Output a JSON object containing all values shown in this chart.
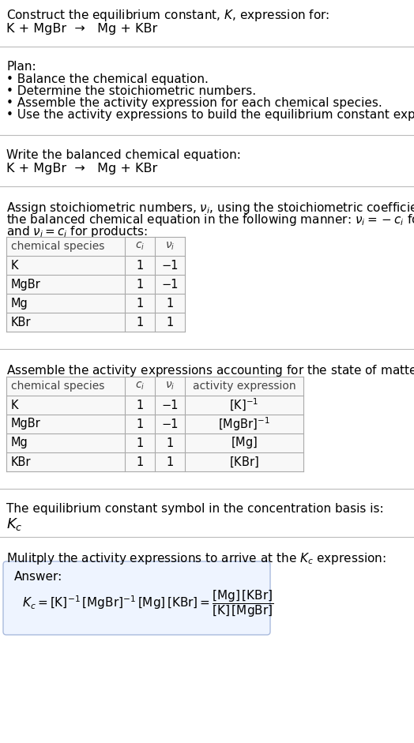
{
  "bg_color": "#ffffff",
  "text_color": "#000000",
  "line_color": "#bbbbbb",
  "table_border_color": "#aaaaaa",
  "table_bg": "#f8f8f8",
  "answer_bg": "#eef4ff",
  "answer_border": "#aabbdd",
  "title_text": "Construct the equilibrium constant, $K$, expression for:",
  "reaction_line": "K + MgBr  →   Mg + KBr",
  "plan_header": "Plan:",
  "plan_bullets": [
    "• Balance the chemical equation.",
    "• Determine the stoichiometric numbers.",
    "• Assemble the activity expression for each chemical species.",
    "• Use the activity expressions to build the equilibrium constant expression."
  ],
  "balanced_header": "Write the balanced chemical equation:",
  "stoich_line1": "Assign stoichiometric numbers, $\\nu_i$, using the stoichiometric coefficients, $c_i$, from",
  "stoich_line2": "the balanced chemical equation in the following manner: $\\nu_i = -c_i$ for reactants",
  "stoich_line3": "and $\\nu_i = c_i$ for products:",
  "table1_headers": [
    "chemical species",
    "$c_i$",
    "$\\nu_i$"
  ],
  "table1_rows": [
    [
      "K",
      "1",
      "−1"
    ],
    [
      "MgBr",
      "1",
      "−1"
    ],
    [
      "Mg",
      "1",
      "1"
    ],
    [
      "KBr",
      "1",
      "1"
    ]
  ],
  "activity_header": "Assemble the activity expressions accounting for the state of matter and $\\nu_i$:",
  "table2_headers": [
    "chemical species",
    "$c_i$",
    "$\\nu_i$",
    "activity expression"
  ],
  "table2_rows": [
    [
      "K",
      "1",
      "−1",
      "$[\\mathrm{K}]^{-1}$"
    ],
    [
      "MgBr",
      "1",
      "−1",
      "$[\\mathrm{MgBr}]^{-1}$"
    ],
    [
      "Mg",
      "1",
      "1",
      "$[\\mathrm{Mg}]$"
    ],
    [
      "KBr",
      "1",
      "1",
      "$[\\mathrm{KBr}]$"
    ]
  ],
  "symbol_header": "The equilibrium constant symbol in the concentration basis is:",
  "symbol": "$K_c$",
  "multiply_header": "Mulitply the activity expressions to arrive at the $K_c$ expression:",
  "answer_label": "Answer:",
  "font_size": 11,
  "reaction_font_size": 11.5,
  "table_font_size": 10.5
}
